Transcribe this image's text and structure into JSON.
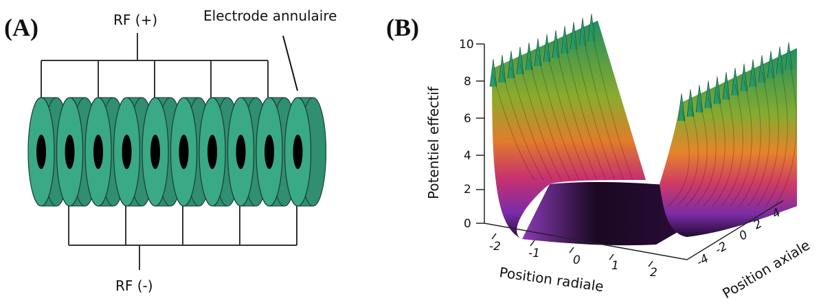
{
  "panel_a": {
    "label": "(A)",
    "rf_plus": "RF (+)",
    "rf_minus": "RF (-)",
    "electrode_label": "Electrode annulaire",
    "ring_count": 10,
    "ring_color": "#3aa985",
    "ring_side_color": "#2f8f70",
    "hole_color": "#000000"
  },
  "panel_b": {
    "label": "(B)",
    "z_label": "Potentiel effectif",
    "x_label": "Position radiale",
    "y_label": "Position axiale",
    "z_ticks": [
      "10",
      "8",
      "6",
      "4",
      "2",
      "0"
    ],
    "x_ticks": [
      "-2",
      "-1",
      "0",
      "1",
      "2"
    ],
    "y_ticks": [
      "-4",
      "-2",
      "0",
      "2",
      "4"
    ]
  }
}
